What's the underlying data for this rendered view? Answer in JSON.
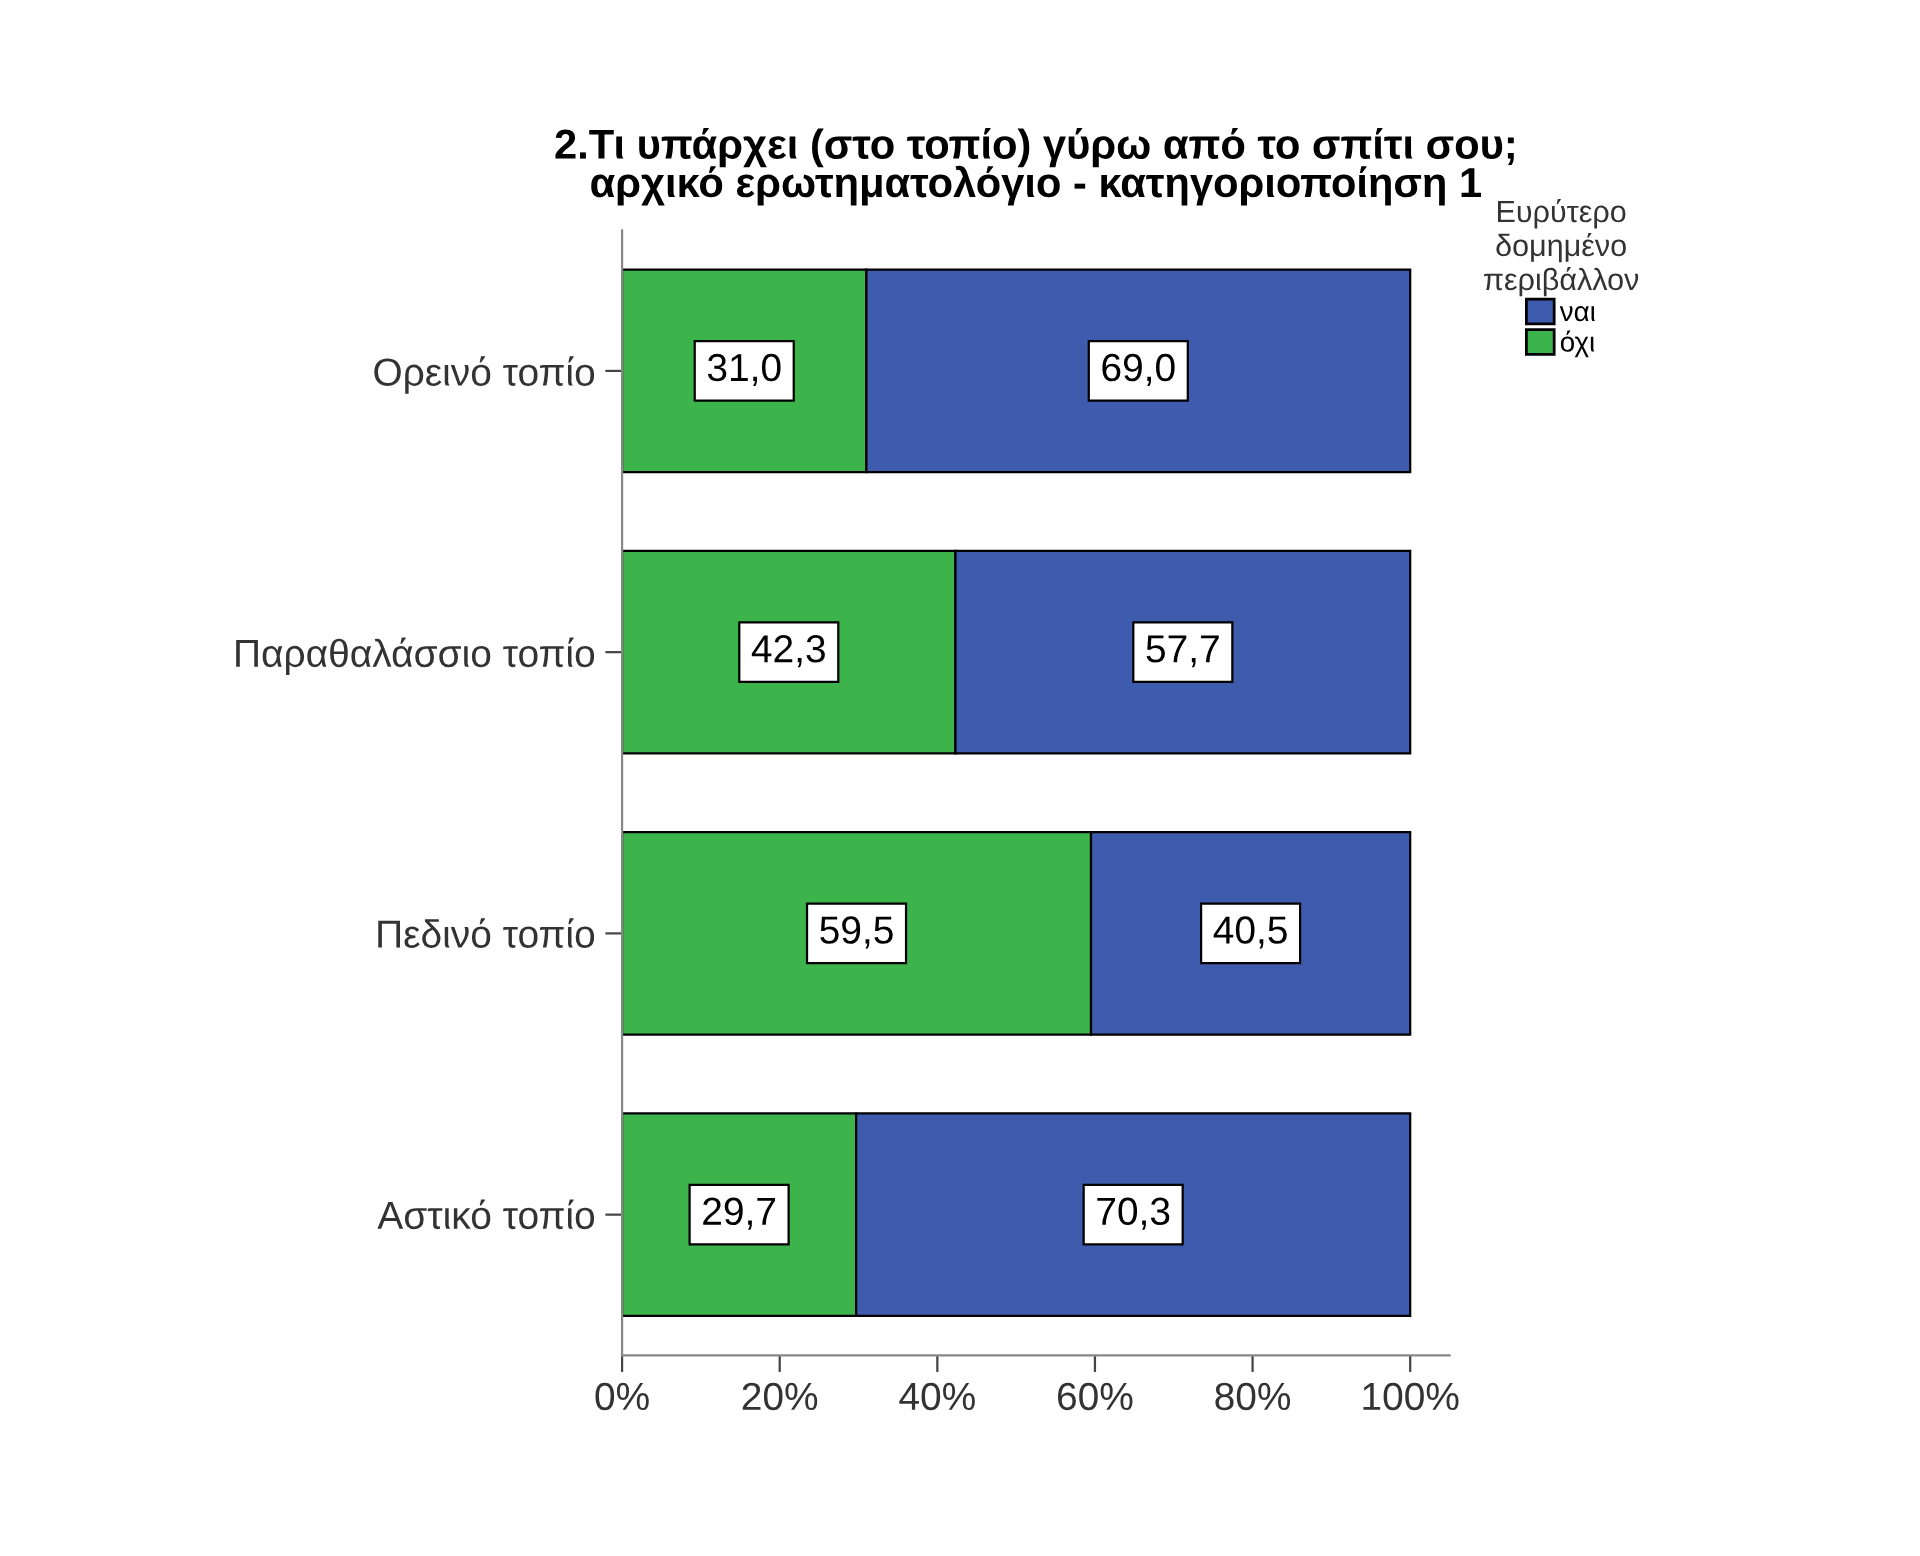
{
  "chart_data": {
    "type": "bar",
    "orientation": "horizontal",
    "stacked": true,
    "title": "2.Τι υπάρχει (στο τοπίο) γύρω από το σπίτι σου;\nαρχικό ερωτηματολόγιο - κατηγοριοποίηση 1",
    "categories": [
      "Ορεινό τοπίο",
      "Παραθαλάσσιο τοπίο",
      "Πεδινό τοπίο",
      "Αστικό τοπίο"
    ],
    "series": [
      {
        "name": "όχι",
        "color": "#3cb44b",
        "values": [
          31.0,
          42.3,
          59.5,
          29.7
        ],
        "value_labels": [
          "31,0",
          "42,3",
          "59,5",
          "29,7"
        ]
      },
      {
        "name": "ναι",
        "color": "#3f5bad",
        "values": [
          69.0,
          57.7,
          40.5,
          70.3
        ],
        "value_labels": [
          "69,0",
          "57,7",
          "40,5",
          "70,3"
        ]
      }
    ],
    "legend_title": "Ευρύτερο\nδομημένο\nπεριβάλλον",
    "legend": "top right",
    "xlim": [
      0,
      105
    ],
    "xticks": [
      {
        "value": 0,
        "label": "0%"
      },
      {
        "value": 20,
        "label": "20%"
      },
      {
        "value": 40,
        "label": "40%"
      },
      {
        "value": 60,
        "label": "60%"
      },
      {
        "value": 80,
        "label": "80%"
      },
      {
        "value": 100,
        "label": "100%"
      }
    ],
    "grid": false
  }
}
